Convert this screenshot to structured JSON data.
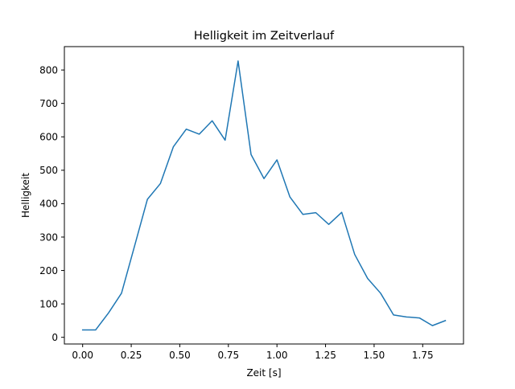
{
  "chart_data": {
    "type": "line",
    "title": "Helligkeit im Zeitverlauf",
    "xlabel": "Zeit [s]",
    "ylabel": "Helligkeit",
    "xlim": [
      -0.094,
      1.96
    ],
    "ylim": [
      -20,
      870
    ],
    "grid": false,
    "legend": "none",
    "x_ticks": [
      0.0,
      0.25,
      0.5,
      0.75,
      1.0,
      1.25,
      1.5,
      1.75
    ],
    "x_tick_labels": [
      "0.00",
      "0.25",
      "0.50",
      "0.75",
      "1.00",
      "1.25",
      "1.50",
      "1.75"
    ],
    "y_ticks": [
      0,
      100,
      200,
      300,
      400,
      500,
      600,
      700,
      800
    ],
    "y_tick_labels": [
      "0",
      "100",
      "200",
      "300",
      "400",
      "500",
      "600",
      "700",
      "800"
    ],
    "series": [
      {
        "color": "#1f77b4",
        "x": [
          0.0,
          0.0667,
          0.1333,
          0.2,
          0.2667,
          0.3333,
          0.4,
          0.4667,
          0.5333,
          0.6,
          0.6667,
          0.7333,
          0.8,
          0.8667,
          0.9333,
          1.0,
          1.0667,
          1.1333,
          1.2,
          1.2667,
          1.3333,
          1.4,
          1.4667,
          1.5333,
          1.6,
          1.6667,
          1.7333,
          1.8,
          1.8667
        ],
        "y": [
          22,
          22,
          73,
          132,
          272,
          413,
          460,
          570,
          623,
          608,
          648,
          590,
          827,
          547,
          475,
          531,
          420,
          368,
          373,
          338,
          374,
          248,
          176,
          132,
          67,
          61,
          58,
          35,
          50
        ]
      }
    ]
  }
}
